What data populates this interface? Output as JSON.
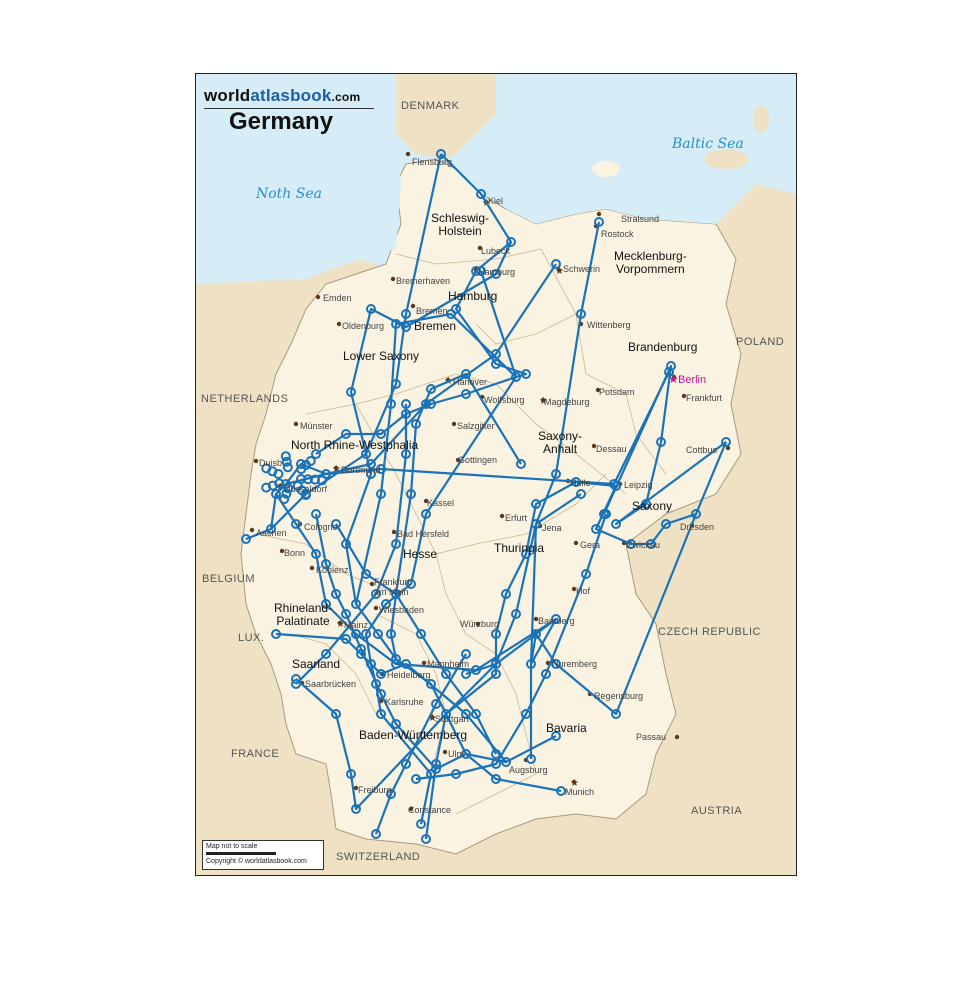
{
  "brand": {
    "name_dark": "world",
    "name_blue": "atlasbook",
    "name_tld": ".com"
  },
  "title": "Germany",
  "seas": {
    "north": "Noth Sea",
    "baltic": "Baltic Sea"
  },
  "countries": {
    "denmark": "DENMARK",
    "poland": "POLAND",
    "netherlands": "NETHERLANDS",
    "belgium": "BELGIUM",
    "lux": "LUX.",
    "france": "FRANCE",
    "czech": "CZECH REPUBLIC",
    "austria": "AUSTRIA",
    "switzerland": "SWITZERLAND"
  },
  "states": {
    "sh1": "Schleswig-",
    "sh2": "Holstein",
    "mv1": "Mecklenburg-",
    "mv2": "Vorpommern",
    "hamburg": "Hamburg",
    "bremen": "Bremen",
    "lowersaxony": "Lower Saxony",
    "brandenburg": "Brandenburg",
    "nrw": "North Rhine-Westphalia",
    "sa1": "Saxony-",
    "sa2": "Anhalt",
    "saxony": "Saxony",
    "hesse": "Hesse",
    "thuringia": "Thuringia",
    "rp1": "Rhineland-",
    "rp2": "Palatinate",
    "saarland": "Saarland",
    "bw": "Baden-Württemberg",
    "bavaria": "Bavaria"
  },
  "cities": {
    "flensburg": "Flensburg",
    "kiel": "Kiel",
    "stralsund": "Stralsund",
    "rostock": "Rostock",
    "lubeck": "Lubeck",
    "schwerin": "Schwerin",
    "hamburg": "Hamburg",
    "bremerhaven": "Bremerhaven",
    "emden": "Emden",
    "oldenburg": "Oldenburg",
    "bremen": "Bremen",
    "wittenberg": "Wittenberg",
    "berlin": "Berlin",
    "potsdam": "Potsdam",
    "frankfurt_oder": "Frankfurt",
    "hanover": "Hanover",
    "wolfsburg": "Wolfsburg",
    "magdeburg": "Magdeburg",
    "munster": "Münster",
    "salzgitter": "Salzgitter",
    "dessau": "Dessau",
    "cottbus": "Cottbus",
    "duisburg": "Duisb",
    "dortmund": "Dortmund",
    "gottingen": "Gottingen",
    "halle": "Halle",
    "leipzig": "Leipzig",
    "dusseldorf": "Düsseldorf",
    "kassel": "Kassel",
    "aachen": "Aachen",
    "cologne": "Cologne",
    "erfurt": "Erfurt",
    "jena": "Jena",
    "gera": "Gera",
    "zwickau": "Zwickau",
    "dresden": "Dresden",
    "bonn": "Bonn",
    "bad_hersfeld": "Bad Hersfeld",
    "koblenz": "Koblenz",
    "hof": "Hof",
    "frankfurt_main1": "Frankfurt",
    "frankfurt_main2": "am Main",
    "wiesbaden": "Wiesbaden",
    "mainz": "Mainz",
    "wurzburg": "Würzburg",
    "bamberg": "Bamberg",
    "mannheim": "Mannheim",
    "nuremberg": "Nuremberg",
    "heidelberg": "Heidelberg",
    "saarbrucken": "Saarbrücken",
    "regensburg": "Regensburg",
    "karlsruhe": "Karlsruhe",
    "stuttgart": "Stuttgart",
    "passau": "Passau",
    "ulm": "Ulm",
    "augsburg": "Augsburg",
    "munich": "Munich",
    "freiburg": "Freiburg",
    "constance": "Constance"
  },
  "scale": {
    "note": "Map not to scale",
    "copyright": "Copyright © worldatlasbook.com"
  },
  "colors": {
    "land_de": "#fbf3e1",
    "land_other": "#efe2c4",
    "water": "#d6ecf6",
    "route": "#1a72b8",
    "city_dot": "#5a3a1a",
    "capital": "#c0188c"
  }
}
